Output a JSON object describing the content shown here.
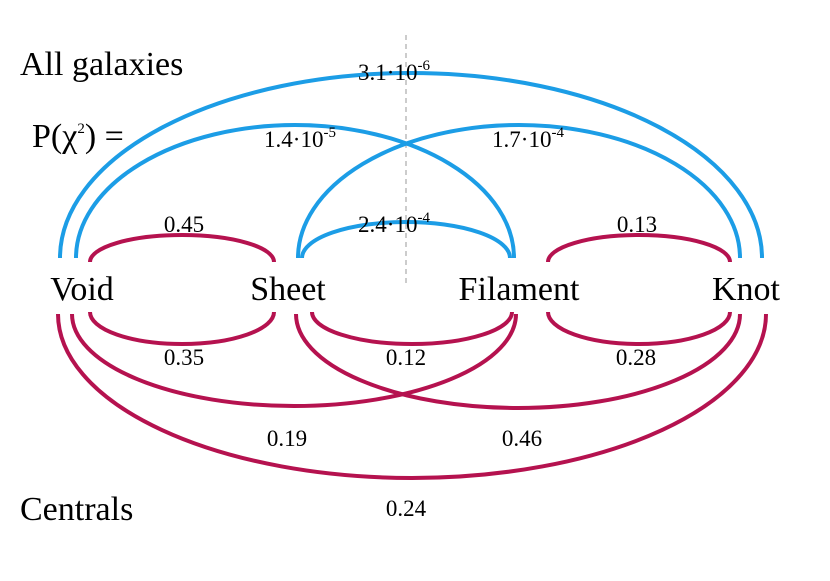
{
  "header": {
    "top": "All galaxies",
    "probability": {
      "prefix": "P(χ",
      "exponent": "2",
      "suffix": ") ="
    },
    "bottom": "Centrals"
  },
  "nodes": [
    {
      "label": "Void"
    },
    {
      "label": "Sheet"
    },
    {
      "label": "Filament"
    },
    {
      "label": "Knot"
    }
  ],
  "all_galaxies_edges": [
    {
      "base": "3.1·10",
      "exponent": "-6"
    },
    {
      "base": "1.4·10",
      "exponent": "-5"
    },
    {
      "base": "1.7·10",
      "exponent": "-4"
    },
    {
      "base": "2.4·10",
      "exponent": "-4"
    },
    {
      "label": "0.45"
    },
    {
      "label": "0.13"
    }
  ],
  "centrals_edges": [
    {
      "label": "0.35"
    },
    {
      "label": "0.12"
    },
    {
      "label": "0.28"
    },
    {
      "label": "0.19"
    },
    {
      "label": "0.46"
    },
    {
      "label": "0.24"
    }
  ]
}
